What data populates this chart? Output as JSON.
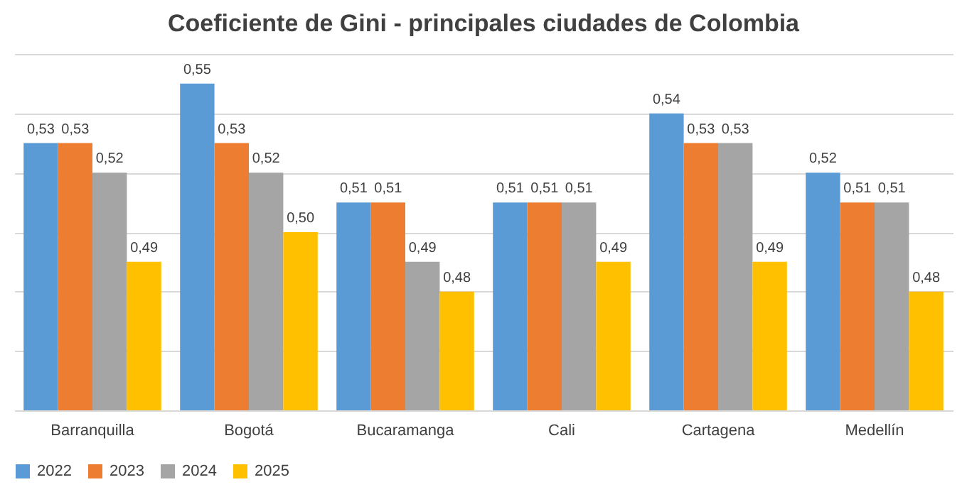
{
  "chart_data": {
    "type": "bar",
    "title": "Coeficiente de Gini - principales ciudades de Colombia",
    "categories": [
      "Barranquilla",
      "Bogotá",
      "Bucaramanga",
      "Cali",
      "Cartagena",
      "Medellín"
    ],
    "series": [
      {
        "name": "2022",
        "color": "#5b9bd5",
        "values": [
          0.53,
          0.55,
          0.51,
          0.51,
          0.54,
          0.52
        ],
        "value_labels": [
          "0,53",
          "0,55",
          "0,51",
          "0,51",
          "0,54",
          "0,52"
        ]
      },
      {
        "name": "2023",
        "color": "#ed7d31",
        "values": [
          0.53,
          0.53,
          0.51,
          0.51,
          0.53,
          0.51
        ],
        "value_labels": [
          "0,53",
          "0,53",
          "0,51",
          "0,51",
          "0,53",
          "0,51"
        ]
      },
      {
        "name": "2024",
        "color": "#a5a5a5",
        "values": [
          0.52,
          0.52,
          0.49,
          0.51,
          0.53,
          0.51
        ],
        "value_labels": [
          "0,52",
          "0,52",
          "0,49",
          "0,51",
          "0,53",
          "0,51"
        ]
      },
      {
        "name": "2025",
        "color": "#ffc000",
        "values": [
          0.49,
          0.5,
          0.48,
          0.49,
          0.49,
          0.48
        ],
        "value_labels": [
          "0,49",
          "0,50",
          "0,48",
          "0,49",
          "0,49",
          "0,48"
        ]
      }
    ],
    "ylim": [
      0.44,
      0.56
    ],
    "yticks": [
      {
        "value": 0.44,
        "label": null
      },
      {
        "value": 0.46,
        "label": null
      },
      {
        "value": 0.48,
        "label": null
      },
      {
        "value": 0.5,
        "label": null
      },
      {
        "value": 0.52,
        "label": null
      },
      {
        "value": 0.54,
        "label": null
      },
      {
        "value": 0.56,
        "label": null
      }
    ],
    "grid": "y",
    "tick_labels": "x",
    "legend": "bottom"
  }
}
